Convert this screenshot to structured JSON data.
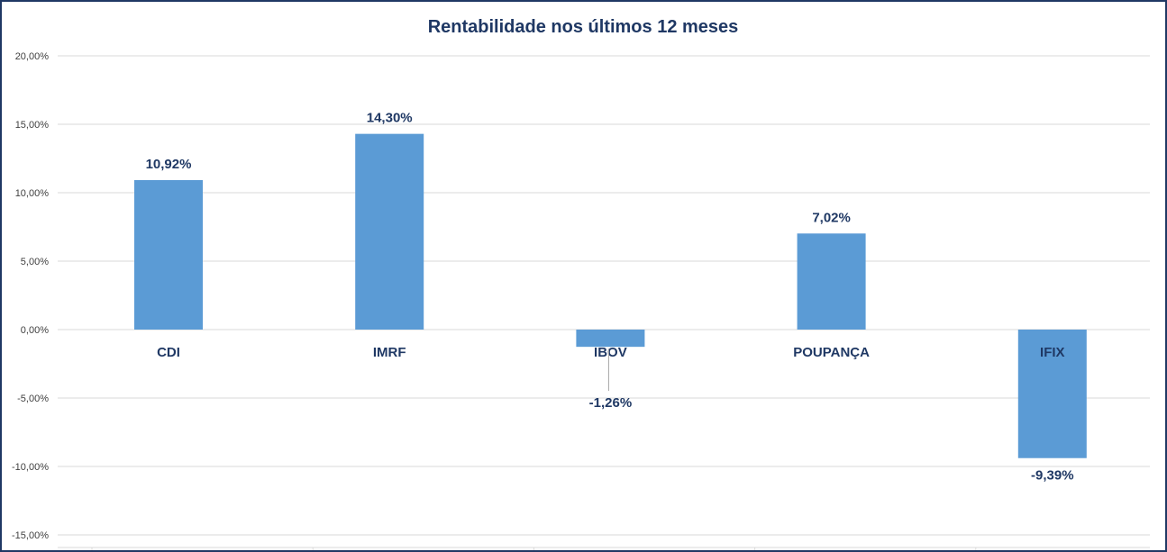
{
  "chart_data": {
    "type": "bar",
    "title": "Rentabilidade nos últimos 12 meses",
    "categories": [
      "CDI",
      "IMRF",
      "IBOV",
      "POUPANÇA",
      "IFIX"
    ],
    "values": [
      10.92,
      14.3,
      -1.26,
      7.02,
      -9.39
    ],
    "data_labels": [
      "10,92%",
      "14,30%",
      "-1,26%",
      "7,02%",
      "-9,39%"
    ],
    "ylim": [
      -15,
      20
    ],
    "yticks": [
      20,
      15,
      10,
      5,
      0,
      -5,
      -10,
      -15
    ],
    "ytick_labels": [
      "20,00%",
      "15,00%",
      "10,00%",
      "5,00%",
      "0,00%",
      "-5,00%",
      "-10,00%",
      "-15,00%"
    ],
    "xlabel": "",
    "ylabel": "",
    "grid": true,
    "legend": "none",
    "bar_color": "#5b9bd5"
  }
}
